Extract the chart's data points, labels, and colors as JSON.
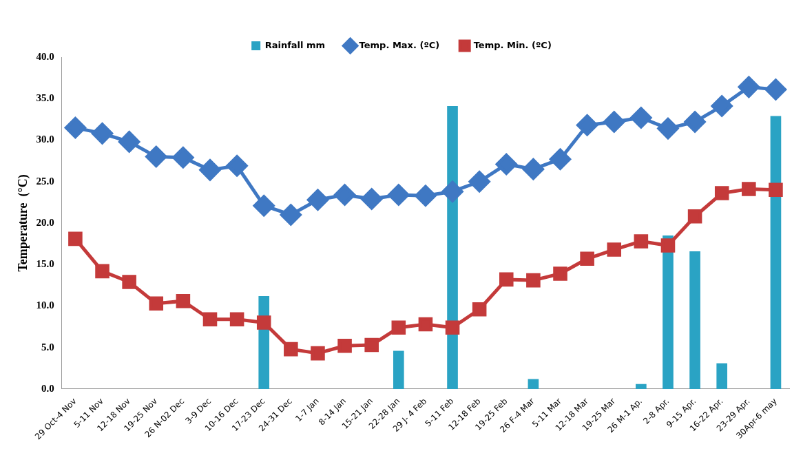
{
  "chart_data": {
    "type": "bar",
    "ylabel": "Temperature  (°C)",
    "categories": [
      "29 Oct-4 Nov",
      "5-11 Nov",
      "12-18 Nov",
      "19-25 Nov",
      "26 N-02 Dec",
      "3-9 Dec",
      "10-16 Dec",
      "17-23 Dec",
      "24-31 Dec",
      "1-7 Jan",
      "8-14 Jan",
      "15-21 Jan",
      "22-28 Jan",
      "29 J- 4 Feb",
      "5-11 Feb",
      "12-18 Feb",
      "19-25 Feb",
      "26 F-4 Mar",
      "5-11 Mar",
      "12-18 Mar",
      "19-25 Mar",
      "26 M-1 Ap.",
      "2-8 Apr.",
      "9-15 Apr.",
      "16-22 Apr.",
      "23-29 Apr.",
      "30Apr-6 may"
    ],
    "series": [
      {
        "name": "Rainfall mm",
        "type": "bar",
        "color": "#2aa3c4",
        "values": [
          null,
          null,
          null,
          null,
          null,
          null,
          null,
          11.2,
          null,
          null,
          null,
          null,
          4.6,
          null,
          34.1,
          null,
          null,
          1.2,
          null,
          null,
          null,
          0.6,
          18.5,
          16.6,
          3.1,
          null,
          32.9
        ]
      },
      {
        "name": "Temp. Max. (ºC)",
        "type": "line",
        "marker": "diamond",
        "color": "#3f78c3",
        "values": [
          31.5,
          30.8,
          29.8,
          28.0,
          27.9,
          26.4,
          26.9,
          22.1,
          21.0,
          22.8,
          23.4,
          22.9,
          23.4,
          23.3,
          23.8,
          25.0,
          27.1,
          26.5,
          27.7,
          31.8,
          32.2,
          32.7,
          31.4,
          32.2,
          34.1,
          36.4,
          36.1
        ]
      },
      {
        "name": "Temp. Min. (ºC)",
        "type": "line",
        "marker": "square",
        "color": "#c43a3a",
        "values": [
          18.1,
          14.2,
          12.9,
          10.3,
          10.6,
          8.4,
          8.4,
          8.0,
          4.8,
          4.3,
          5.2,
          5.3,
          7.4,
          7.8,
          7.4,
          9.6,
          13.2,
          13.1,
          13.9,
          15.7,
          16.8,
          17.8,
          17.3,
          20.8,
          23.6,
          24.1,
          24.0
        ]
      }
    ],
    "ylim": [
      0,
      40
    ],
    "yticks": [
      {
        "value": 0,
        "label": "0.0"
      },
      {
        "value": 5,
        "label": "5.0"
      },
      {
        "value": 10,
        "label": "10.0"
      },
      {
        "value": 15,
        "label": "15.0"
      },
      {
        "value": 20,
        "label": "20.0"
      },
      {
        "value": 25,
        "label": "25.0"
      },
      {
        "value": 30,
        "label": "30.0"
      },
      {
        "value": 35,
        "label": "35.0"
      },
      {
        "value": 40,
        "label": "40.0"
      }
    ],
    "grid": false,
    "legend": "top"
  }
}
